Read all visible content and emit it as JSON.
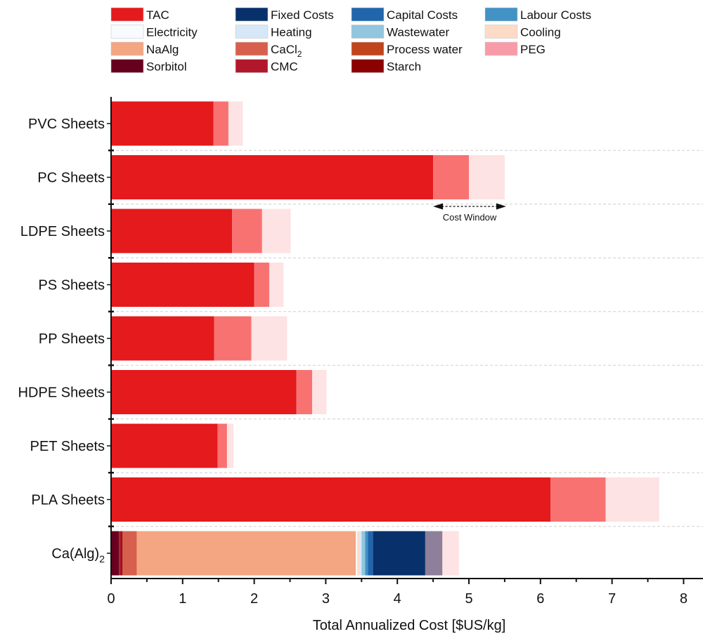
{
  "chart_data": {
    "type": "bar",
    "orientation": "horizontal",
    "stacked": true,
    "xlabel": "Total Annualized Cost [$US/kg]",
    "xlim": [
      0,
      8.3
    ],
    "xticks": [
      "0",
      "1",
      "2",
      "3",
      "4",
      "5",
      "6",
      "7",
      "8"
    ],
    "grid": "horizontal dashed between categories",
    "legend_position": "top",
    "legend": [
      {
        "key": "tac",
        "label": "TAC",
        "sub": "",
        "color": "#e41a1c"
      },
      {
        "key": "fixed",
        "label": "Fixed Costs",
        "sub": "",
        "color": "#08306b"
      },
      {
        "key": "capital",
        "label": "Capital Costs",
        "sub": "",
        "color": "#2166ac"
      },
      {
        "key": "labour",
        "label": "Labour Costs",
        "sub": "",
        "color": "#4292c6"
      },
      {
        "key": "electricity",
        "label": "Electricity",
        "sub": "",
        "color": "#f7fbff"
      },
      {
        "key": "heating",
        "label": "Heating",
        "sub": "",
        "color": "#d6e8f7"
      },
      {
        "key": "wastewater",
        "label": "Wastewater",
        "sub": "",
        "color": "#92c5de"
      },
      {
        "key": "cooling",
        "label": "Cooling",
        "sub": "",
        "color": "#fddbc7"
      },
      {
        "key": "naalg",
        "label": "NaAlg",
        "sub": "",
        "color": "#f4a582"
      },
      {
        "key": "cacl2",
        "label": "CaCl",
        "sub": "2",
        "color": "#d6604d"
      },
      {
        "key": "processwater",
        "label": "Process water",
        "sub": "",
        "color": "#c0441c"
      },
      {
        "key": "peg",
        "label": "PEG",
        "sub": "",
        "color": "#f79ba8"
      },
      {
        "key": "sorbitol",
        "label": "Sorbitol",
        "sub": "",
        "color": "#67001f"
      },
      {
        "key": "cmc",
        "label": "CMC",
        "sub": "",
        "color": "#b2182b"
      },
      {
        "key": "starch",
        "label": "Starch",
        "sub": "",
        "color": "#8b0000"
      }
    ],
    "categories": [
      {
        "label": "PVC Sheets",
        "sub": "",
        "segments": [
          {
            "value": 1.43,
            "color": "#e41a1c"
          },
          {
            "value": 0.21,
            "color": "#f87272"
          },
          {
            "value": 0.2,
            "color": "#fde3e3"
          }
        ]
      },
      {
        "label": "PC Sheets",
        "sub": "",
        "segments": [
          {
            "value": 4.5,
            "color": "#e41a1c"
          },
          {
            "value": 0.5,
            "color": "#f87272"
          },
          {
            "value": 0.5,
            "color": "#fde3e3"
          }
        ]
      },
      {
        "label": "LDPE Sheets",
        "sub": "",
        "segments": [
          {
            "value": 1.69,
            "color": "#e41a1c"
          },
          {
            "value": 0.42,
            "color": "#f87272"
          },
          {
            "value": 0.4,
            "color": "#fde3e3"
          }
        ]
      },
      {
        "label": "PS Sheets",
        "sub": "",
        "segments": [
          {
            "value": 2.0,
            "color": "#e41a1c"
          },
          {
            "value": 0.21,
            "color": "#f87272"
          },
          {
            "value": 0.2,
            "color": "#fde3e3"
          }
        ]
      },
      {
        "label": "PP Sheets",
        "sub": "",
        "segments": [
          {
            "value": 1.44,
            "color": "#e41a1c"
          },
          {
            "value": 0.52,
            "color": "#f87272"
          },
          {
            "value": 0.5,
            "color": "#fde3e3"
          }
        ]
      },
      {
        "label": "HDPE Sheets",
        "sub": "",
        "segments": [
          {
            "value": 2.59,
            "color": "#e41a1c"
          },
          {
            "value": 0.22,
            "color": "#f87272"
          },
          {
            "value": 0.2,
            "color": "#fde3e3"
          }
        ]
      },
      {
        "label": "PET Sheets",
        "sub": "",
        "segments": [
          {
            "value": 1.49,
            "color": "#e41a1c"
          },
          {
            "value": 0.13,
            "color": "#f87272"
          },
          {
            "value": 0.09,
            "color": "#fde3e3"
          }
        ]
      },
      {
        "label": "PLA Sheets",
        "sub": "",
        "segments": [
          {
            "value": 6.14,
            "color": "#e41a1c"
          },
          {
            "value": 0.77,
            "color": "#f87272"
          },
          {
            "value": 0.75,
            "color": "#fde3e3"
          }
        ]
      },
      {
        "label": "Ca(Alg)",
        "sub": "2",
        "segments": [
          {
            "value": 0.11,
            "color": "#67001f"
          },
          {
            "value": 0.03,
            "color": "#b2182b"
          },
          {
            "value": 0.02,
            "color": "#8b0000"
          },
          {
            "value": 0.2,
            "color": "#d6604d"
          },
          {
            "value": 3.06,
            "color": "#f4a582"
          },
          {
            "value": 0.02,
            "color": "#f7fbff"
          },
          {
            "value": 0.03,
            "color": "#fddbc7"
          },
          {
            "value": 0.03,
            "color": "#d6e8f7"
          },
          {
            "value": 0.05,
            "color": "#92c5de"
          },
          {
            "value": 0.04,
            "color": "#4292c6"
          },
          {
            "value": 0.07,
            "color": "#2166ac"
          },
          {
            "value": 0.73,
            "color": "#08306b"
          },
          {
            "value": 0.24,
            "color": "#8e7f9a"
          },
          {
            "value": 0.23,
            "color": "#fde3e3"
          }
        ]
      }
    ],
    "annotations": [
      {
        "text": "Cost Window",
        "category_index": 1,
        "from": 4.5,
        "to": 5.52
      }
    ]
  }
}
